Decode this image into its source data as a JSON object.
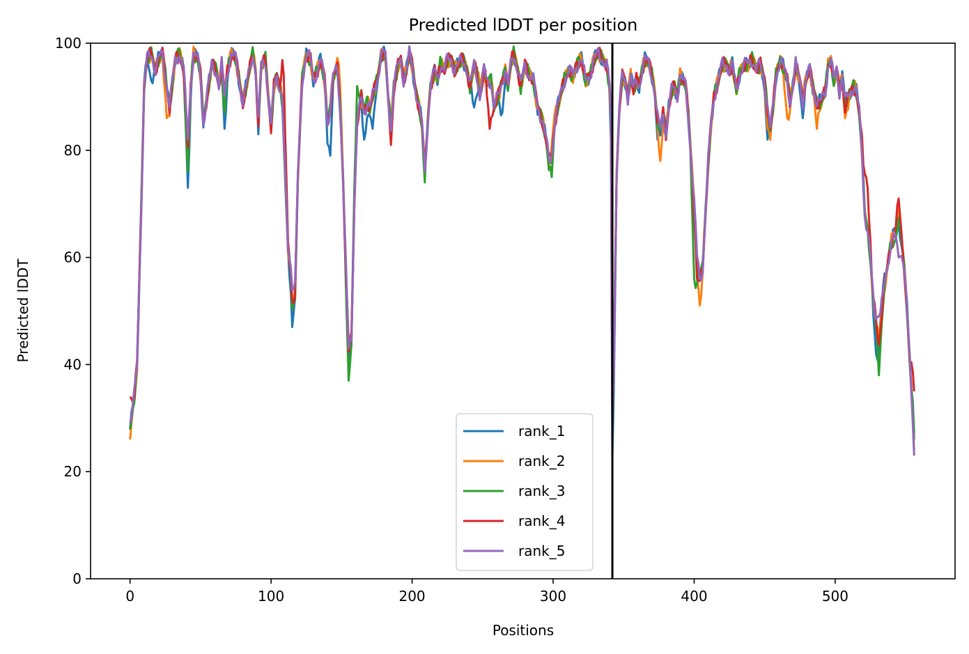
{
  "chart_data": {
    "type": "line",
    "title": "Predicted lDDT per position",
    "xlabel": "Positions",
    "ylabel": "Predicted lDDT",
    "xlim": [
      -28,
      585
    ],
    "ylim": [
      0,
      100
    ],
    "xticks": [
      0,
      100,
      200,
      300,
      400,
      500
    ],
    "yticks": [
      0,
      20,
      40,
      60,
      80,
      100
    ],
    "grid": false,
    "legend_position": "lower center",
    "chain_break": 342,
    "x_max": 556,
    "series": [
      {
        "name": "rank_1",
        "color": "#1f77b4"
      },
      {
        "name": "rank_2",
        "color": "#ff7f0e"
      },
      {
        "name": "rank_3",
        "color": "#2ca02c"
      },
      {
        "name": "rank_4",
        "color": "#d62728"
      },
      {
        "name": "rank_5",
        "color": "#9467bd"
      }
    ],
    "profile": [
      [
        0,
        28
      ],
      [
        3,
        34
      ],
      [
        5,
        40
      ],
      [
        8,
        70
      ],
      [
        10,
        92
      ],
      [
        12,
        97
      ],
      [
        15,
        98
      ],
      [
        18,
        95
      ],
      [
        20,
        97
      ],
      [
        23,
        98
      ],
      [
        26,
        92
      ],
      [
        28,
        88
      ],
      [
        32,
        97
      ],
      [
        35,
        98
      ],
      [
        38,
        95
      ],
      [
        41,
        80
      ],
      [
        43,
        92
      ],
      [
        45,
        98
      ],
      [
        48,
        97
      ],
      [
        50,
        94
      ],
      [
        52,
        85
      ],
      [
        55,
        91
      ],
      [
        58,
        96
      ],
      [
        61,
        95
      ],
      [
        63,
        92
      ],
      [
        65,
        96
      ],
      [
        67,
        90
      ],
      [
        69,
        95
      ],
      [
        72,
        98
      ],
      [
        75,
        97
      ],
      [
        78,
        92
      ],
      [
        80,
        89
      ],
      [
        84,
        94
      ],
      [
        87,
        98
      ],
      [
        89,
        95
      ],
      [
        91,
        85
      ],
      [
        93,
        96
      ],
      [
        96,
        97
      ],
      [
        98,
        90
      ],
      [
        100,
        84
      ],
      [
        102,
        92
      ],
      [
        104,
        94
      ],
      [
        106,
        92
      ],
      [
        108,
        89
      ],
      [
        110,
        75
      ],
      [
        112,
        62
      ],
      [
        114,
        56
      ],
      [
        115,
        50
      ],
      [
        117,
        53
      ],
      [
        119,
        75
      ],
      [
        122,
        93
      ],
      [
        125,
        98
      ],
      [
        128,
        97
      ],
      [
        130,
        93
      ],
      [
        133,
        95
      ],
      [
        135,
        97
      ],
      [
        138,
        93
      ],
      [
        140,
        85
      ],
      [
        142,
        88
      ],
      [
        144,
        94
      ],
      [
        147,
        95
      ],
      [
        149,
        88
      ],
      [
        151,
        75
      ],
      [
        153,
        58
      ],
      [
        155,
        42
      ],
      [
        157,
        45
      ],
      [
        159,
        70
      ],
      [
        161,
        85
      ],
      [
        164,
        90
      ],
      [
        166,
        87
      ],
      [
        168,
        89
      ],
      [
        170,
        88
      ],
      [
        172,
        90
      ],
      [
        174,
        92
      ],
      [
        176,
        94
      ],
      [
        178,
        98
      ],
      [
        181,
        98
      ],
      [
        183,
        90
      ],
      [
        185,
        84
      ],
      [
        187,
        92
      ],
      [
        190,
        96
      ],
      [
        192,
        97
      ],
      [
        194,
        93
      ],
      [
        196,
        95
      ],
      [
        198,
        98
      ],
      [
        200,
        96
      ],
      [
        202,
        92
      ],
      [
        205,
        88
      ],
      [
        207,
        85
      ],
      [
        209,
        76
      ],
      [
        211,
        85
      ],
      [
        213,
        92
      ],
      [
        216,
        95
      ],
      [
        218,
        93
      ],
      [
        220,
        96
      ],
      [
        223,
        95
      ],
      [
        225,
        97
      ],
      [
        228,
        97
      ],
      [
        230,
        95
      ],
      [
        233,
        96
      ],
      [
        236,
        97
      ],
      [
        239,
        95
      ],
      [
        241,
        92
      ],
      [
        244,
        96
      ],
      [
        246,
        94
      ],
      [
        248,
        90
      ],
      [
        251,
        95
      ],
      [
        253,
        93
      ],
      [
        256,
        93
      ],
      [
        258,
        88
      ],
      [
        261,
        90
      ],
      [
        263,
        92
      ],
      [
        266,
        95
      ],
      [
        268,
        92
      ],
      [
        270,
        96
      ],
      [
        272,
        98
      ],
      [
        275,
        95
      ],
      [
        277,
        92
      ],
      [
        280,
        96
      ],
      [
        283,
        94
      ],
      [
        286,
        93
      ],
      [
        289,
        88
      ],
      [
        292,
        86
      ],
      [
        295,
        82
      ],
      [
        297,
        78
      ],
      [
        299,
        79
      ],
      [
        301,
        85
      ],
      [
        303,
        88
      ],
      [
        305,
        90
      ],
      [
        308,
        93
      ],
      [
        311,
        95
      ],
      [
        314,
        94
      ],
      [
        317,
        96
      ],
      [
        320,
        97
      ],
      [
        323,
        93
      ],
      [
        326,
        94
      ],
      [
        329,
        97
      ],
      [
        332,
        98
      ],
      [
        335,
        97
      ],
      [
        338,
        96
      ],
      [
        340,
        92
      ],
      [
        341,
        87
      ],
      [
        342,
        30
      ],
      [
        343,
        40
      ],
      [
        345,
        75
      ],
      [
        347,
        88
      ],
      [
        349,
        94
      ],
      [
        351,
        93
      ],
      [
        353,
        90
      ],
      [
        355,
        94
      ],
      [
        357,
        91
      ],
      [
        359,
        93
      ],
      [
        361,
        92
      ],
      [
        363,
        95
      ],
      [
        365,
        97
      ],
      [
        368,
        96
      ],
      [
        370,
        94
      ],
      [
        372,
        91
      ],
      [
        374,
        86
      ],
      [
        376,
        84
      ],
      [
        378,
        87
      ],
      [
        380,
        83
      ],
      [
        382,
        88
      ],
      [
        384,
        91
      ],
      [
        386,
        92
      ],
      [
        388,
        90
      ],
      [
        390,
        94
      ],
      [
        392,
        93
      ],
      [
        394,
        92
      ],
      [
        396,
        86
      ],
      [
        398,
        78
      ],
      [
        400,
        70
      ],
      [
        402,
        60
      ],
      [
        404,
        56
      ],
      [
        406,
        58
      ],
      [
        408,
        68
      ],
      [
        410,
        78
      ],
      [
        412,
        85
      ],
      [
        414,
        90
      ],
      [
        416,
        92
      ],
      [
        418,
        94
      ],
      [
        420,
        96
      ],
      [
        423,
        96
      ],
      [
        425,
        95
      ],
      [
        427,
        96
      ],
      [
        430,
        91
      ],
      [
        432,
        94
      ],
      [
        435,
        96
      ],
      [
        438,
        96
      ],
      [
        441,
        97
      ],
      [
        444,
        95
      ],
      [
        447,
        96
      ],
      [
        450,
        93
      ],
      [
        452,
        88
      ],
      [
        454,
        84
      ],
      [
        456,
        88
      ],
      [
        458,
        94
      ],
      [
        461,
        97
      ],
      [
        464,
        95
      ],
      [
        466,
        93
      ],
      [
        468,
        89
      ],
      [
        470,
        92
      ],
      [
        472,
        96
      ],
      [
        475,
        93
      ],
      [
        477,
        89
      ],
      [
        479,
        93
      ],
      [
        482,
        95
      ],
      [
        484,
        92
      ],
      [
        487,
        89
      ],
      [
        490,
        89
      ],
      [
        493,
        91
      ],
      [
        495,
        96
      ],
      [
        497,
        97
      ],
      [
        499,
        93
      ],
      [
        501,
        95
      ],
      [
        503,
        91
      ],
      [
        505,
        94
      ],
      [
        507,
        89
      ],
      [
        509,
        90
      ],
      [
        511,
        91
      ],
      [
        513,
        92
      ],
      [
        515,
        91
      ],
      [
        517,
        87
      ],
      [
        519,
        80
      ],
      [
        521,
        68
      ],
      [
        523,
        65
      ],
      [
        525,
        60
      ],
      [
        527,
        52
      ],
      [
        529,
        48
      ],
      [
        531,
        44
      ],
      [
        533,
        50
      ],
      [
        535,
        55
      ],
      [
        537,
        58
      ],
      [
        539,
        62
      ],
      [
        541,
        64
      ],
      [
        543,
        65
      ],
      [
        545,
        67
      ],
      [
        547,
        63
      ],
      [
        549,
        58
      ],
      [
        551,
        50
      ],
      [
        553,
        40
      ],
      [
        555,
        32
      ],
      [
        556,
        26
      ]
    ],
    "variations": {
      "rank_1": [
        [
          15,
          93
        ],
        [
          41,
          73
        ],
        [
          67,
          84
        ],
        [
          91,
          83
        ],
        [
          115,
          47
        ],
        [
          142,
          79
        ],
        [
          155,
          41
        ],
        [
          166,
          83
        ],
        [
          168,
          86
        ],
        [
          172,
          84
        ],
        [
          244,
          88
        ],
        [
          259,
          88
        ],
        [
          264,
          87
        ],
        [
          342,
          23
        ],
        [
          374,
          82
        ],
        [
          452,
          82
        ],
        [
          477,
          86
        ],
        [
          529,
          42
        ],
        [
          535,
          57
        ],
        [
          556,
          26
        ]
      ],
      "rank_2": [
        [
          0,
          26
        ],
        [
          26,
          86
        ],
        [
          41,
          78
        ],
        [
          148,
          96
        ],
        [
          155,
          45
        ],
        [
          248,
          92
        ],
        [
          300,
          84
        ],
        [
          376,
          78
        ],
        [
          404,
          51
        ],
        [
          452,
          84
        ],
        [
          466,
          86
        ],
        [
          487,
          84
        ],
        [
          507,
          86
        ],
        [
          545,
          69
        ],
        [
          556,
          24
        ]
      ],
      "rank_3": [
        [
          41,
          76
        ],
        [
          67,
          87
        ],
        [
          91,
          85
        ],
        [
          155,
          37
        ],
        [
          161,
          92
        ],
        [
          209,
          74
        ],
        [
          299,
          75
        ],
        [
          400,
          56
        ],
        [
          531,
          38
        ],
        [
          541,
          62
        ]
      ],
      "rank_4": [
        [
          0,
          34
        ],
        [
          109,
          94
        ],
        [
          115,
          52
        ],
        [
          185,
          81
        ],
        [
          255,
          84
        ],
        [
          402,
          56
        ],
        [
          507,
          87
        ],
        [
          521,
          73
        ],
        [
          523,
          73
        ],
        [
          545,
          71
        ],
        [
          556,
          35
        ]
      ],
      "rank_5": [
        [
          0,
          29
        ],
        [
          41,
          82
        ],
        [
          115,
          54
        ],
        [
          155,
          43
        ],
        [
          531,
          49
        ],
        [
          545,
          60
        ],
        [
          556,
          23
        ]
      ]
    }
  }
}
